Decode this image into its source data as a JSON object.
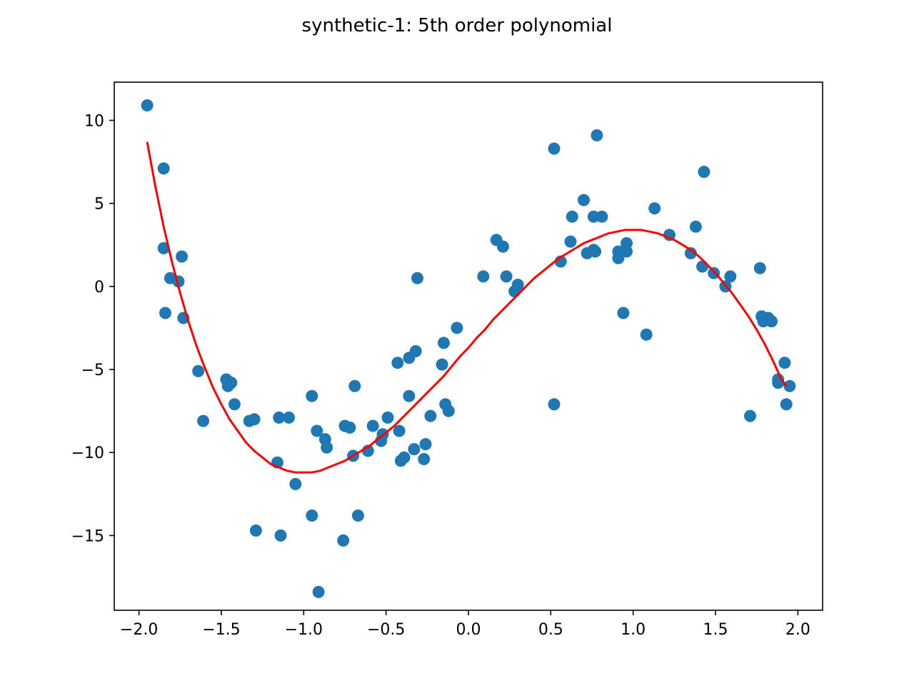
{
  "chart_data": {
    "type": "scatter",
    "title": "synthetic-1: 5th order polynomial",
    "xlabel": "",
    "ylabel": "",
    "xlim": [
      -2.15,
      2.15
    ],
    "ylim": [
      -19.5,
      12.3
    ],
    "grid": false,
    "x_ticks": [
      -2.0,
      -1.5,
      -1.0,
      -0.5,
      0.0,
      0.5,
      1.0,
      1.5,
      2.0
    ],
    "x_tick_labels": [
      "−2.0",
      "−1.5",
      "−1.0",
      "−0.5",
      "0.0",
      "0.5",
      "1.0",
      "1.5",
      "2.0"
    ],
    "y_ticks": [
      10,
      5,
      0,
      -5,
      -10,
      -15
    ],
    "y_tick_labels": [
      "10",
      "5",
      "0",
      "−5",
      "−10",
      "−15"
    ],
    "series": [
      {
        "type": "scatter",
        "color": "#1f77b4",
        "points": [
          [
            -1.95,
            10.9
          ],
          [
            -1.85,
            7.1
          ],
          [
            -1.85,
            2.3
          ],
          [
            -1.84,
            -1.6
          ],
          [
            -1.81,
            0.5
          ],
          [
            -1.76,
            0.3
          ],
          [
            -1.74,
            1.8
          ],
          [
            -1.73,
            -1.9
          ],
          [
            -1.64,
            -5.1
          ],
          [
            -1.61,
            -8.1
          ],
          [
            -1.47,
            -5.6
          ],
          [
            -1.46,
            -6.0
          ],
          [
            -1.44,
            -5.8
          ],
          [
            -1.42,
            -7.1
          ],
          [
            -1.33,
            -8.1
          ],
          [
            -1.3,
            -8.0
          ],
          [
            -1.29,
            -14.7
          ],
          [
            -1.16,
            -10.6
          ],
          [
            -1.15,
            -7.9
          ],
          [
            -1.14,
            -15.0
          ],
          [
            -1.09,
            -7.9
          ],
          [
            -1.05,
            -11.9
          ],
          [
            -0.95,
            -13.8
          ],
          [
            -0.95,
            -6.6
          ],
          [
            -0.92,
            -8.7
          ],
          [
            -0.91,
            -18.4
          ],
          [
            -0.87,
            -9.2
          ],
          [
            -0.86,
            -9.7
          ],
          [
            -0.76,
            -15.3
          ],
          [
            -0.75,
            -8.4
          ],
          [
            -0.72,
            -8.5
          ],
          [
            -0.7,
            -10.2
          ],
          [
            -0.69,
            -6.0
          ],
          [
            -0.67,
            -13.8
          ],
          [
            -0.61,
            -9.9
          ],
          [
            -0.58,
            -8.4
          ],
          [
            -0.53,
            -9.3
          ],
          [
            -0.52,
            -8.9
          ],
          [
            -0.49,
            -7.9
          ],
          [
            -0.43,
            -4.6
          ],
          [
            -0.42,
            -8.7
          ],
          [
            -0.41,
            -10.5
          ],
          [
            -0.39,
            -10.3
          ],
          [
            -0.36,
            -6.6
          ],
          [
            -0.36,
            -4.3
          ],
          [
            -0.33,
            -9.8
          ],
          [
            -0.32,
            -3.9
          ],
          [
            -0.31,
            0.5
          ],
          [
            -0.27,
            -10.4
          ],
          [
            -0.26,
            -9.5
          ],
          [
            -0.23,
            -7.8
          ],
          [
            -0.16,
            -4.7
          ],
          [
            -0.15,
            -3.4
          ],
          [
            -0.14,
            -7.1
          ],
          [
            -0.12,
            -7.5
          ],
          [
            -0.07,
            -2.5
          ],
          [
            0.09,
            0.6
          ],
          [
            0.17,
            2.8
          ],
          [
            0.21,
            2.4
          ],
          [
            0.23,
            0.6
          ],
          [
            0.28,
            -0.3
          ],
          [
            0.3,
            0.1
          ],
          [
            0.52,
            8.3
          ],
          [
            0.52,
            -7.1
          ],
          [
            0.56,
            1.5
          ],
          [
            0.62,
            2.7
          ],
          [
            0.63,
            4.2
          ],
          [
            0.7,
            5.2
          ],
          [
            0.72,
            2.0
          ],
          [
            0.76,
            4.2
          ],
          [
            0.76,
            2.2
          ],
          [
            0.77,
            2.1
          ],
          [
            0.78,
            9.1
          ],
          [
            0.81,
            4.2
          ],
          [
            0.91,
            2.1
          ],
          [
            0.91,
            1.7
          ],
          [
            0.94,
            -1.6
          ],
          [
            0.96,
            2.6
          ],
          [
            0.96,
            2.1
          ],
          [
            1.08,
            -2.9
          ],
          [
            1.13,
            4.7
          ],
          [
            1.22,
            3.1
          ],
          [
            1.35,
            2.0
          ],
          [
            1.38,
            3.6
          ],
          [
            1.42,
            1.2
          ],
          [
            1.43,
            6.9
          ],
          [
            1.49,
            0.8
          ],
          [
            1.56,
            0.0
          ],
          [
            1.59,
            0.6
          ],
          [
            1.71,
            -7.8
          ],
          [
            1.77,
            1.1
          ],
          [
            1.78,
            -1.8
          ],
          [
            1.79,
            -2.1
          ],
          [
            1.82,
            -1.9
          ],
          [
            1.84,
            -2.1
          ],
          [
            1.88,
            -5.6
          ],
          [
            1.88,
            -5.8
          ],
          [
            1.92,
            -4.6
          ],
          [
            1.93,
            -7.1
          ],
          [
            1.95,
            -6.0
          ]
        ]
      },
      {
        "type": "line",
        "color": "#ff0000",
        "points": [
          [
            -1.95,
            8.7
          ],
          [
            -1.9,
            6.0
          ],
          [
            -1.85,
            3.6
          ],
          [
            -1.8,
            1.5
          ],
          [
            -1.75,
            -0.4
          ],
          [
            -1.7,
            -2.1
          ],
          [
            -1.65,
            -3.6
          ],
          [
            -1.6,
            -4.9
          ],
          [
            -1.55,
            -6.1
          ],
          [
            -1.5,
            -7.1
          ],
          [
            -1.45,
            -8.0
          ],
          [
            -1.4,
            -8.7
          ],
          [
            -1.35,
            -9.4
          ],
          [
            -1.3,
            -9.9
          ],
          [
            -1.25,
            -10.3
          ],
          [
            -1.2,
            -10.7
          ],
          [
            -1.15,
            -10.9
          ],
          [
            -1.1,
            -11.1
          ],
          [
            -1.05,
            -11.2
          ],
          [
            -1.0,
            -11.2
          ],
          [
            -0.95,
            -11.2
          ],
          [
            -0.9,
            -11.1
          ],
          [
            -0.85,
            -10.9
          ],
          [
            -0.8,
            -10.7
          ],
          [
            -0.75,
            -10.5
          ],
          [
            -0.7,
            -10.2
          ],
          [
            -0.65,
            -9.9
          ],
          [
            -0.6,
            -9.6
          ],
          [
            -0.55,
            -9.2
          ],
          [
            -0.5,
            -8.8
          ],
          [
            -0.45,
            -8.4
          ],
          [
            -0.4,
            -7.9
          ],
          [
            -0.35,
            -7.4
          ],
          [
            -0.3,
            -6.9
          ],
          [
            -0.25,
            -6.4
          ],
          [
            -0.2,
            -5.9
          ],
          [
            -0.15,
            -5.4
          ],
          [
            -0.1,
            -4.8
          ],
          [
            -0.05,
            -4.2
          ],
          [
            0.0,
            -3.7
          ],
          [
            0.05,
            -3.1
          ],
          [
            0.1,
            -2.6
          ],
          [
            0.15,
            -2.0
          ],
          [
            0.2,
            -1.5
          ],
          [
            0.25,
            -1.0
          ],
          [
            0.3,
            -0.5
          ],
          [
            0.35,
            0.0
          ],
          [
            0.4,
            0.5
          ],
          [
            0.45,
            0.9
          ],
          [
            0.5,
            1.3
          ],
          [
            0.55,
            1.7
          ],
          [
            0.6,
            2.0
          ],
          [
            0.65,
            2.3
          ],
          [
            0.7,
            2.6
          ],
          [
            0.75,
            2.8
          ],
          [
            0.8,
            3.0
          ],
          [
            0.85,
            3.2
          ],
          [
            0.9,
            3.3
          ],
          [
            0.95,
            3.4
          ],
          [
            1.0,
            3.4
          ],
          [
            1.05,
            3.4
          ],
          [
            1.1,
            3.3
          ],
          [
            1.15,
            3.2
          ],
          [
            1.2,
            3.0
          ],
          [
            1.25,
            2.8
          ],
          [
            1.3,
            2.5
          ],
          [
            1.35,
            2.2
          ],
          [
            1.4,
            1.8
          ],
          [
            1.45,
            1.3
          ],
          [
            1.5,
            0.8
          ],
          [
            1.55,
            0.2
          ],
          [
            1.6,
            -0.4
          ],
          [
            1.65,
            -1.1
          ],
          [
            1.7,
            -1.8
          ],
          [
            1.75,
            -2.6
          ],
          [
            1.8,
            -3.5
          ],
          [
            1.85,
            -4.5
          ],
          [
            1.9,
            -5.6
          ],
          [
            1.93,
            -6.0
          ]
        ]
      }
    ]
  }
}
